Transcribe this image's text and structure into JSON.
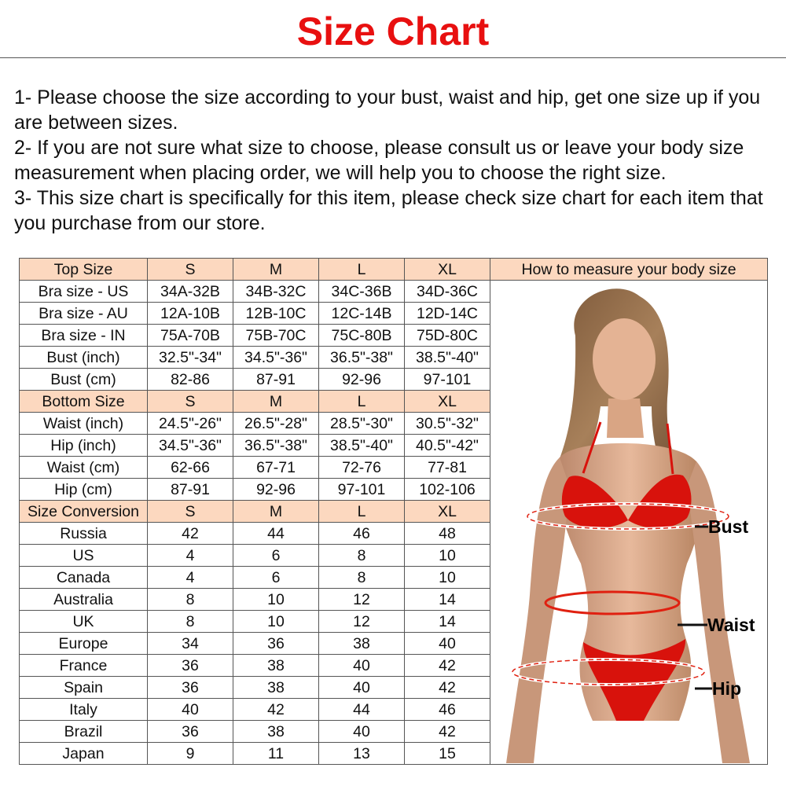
{
  "title": "Size Chart",
  "notes": [
    "1- Please choose the size according to your bust, waist and hip, get one size up if you are between sizes.",
    "2- If you are not sure what size to choose, please consult us or leave your body size measurement when placing order, we will help you to choose the right size.",
    "3- This size chart is specifically for this item, please check size chart for each item that you purchase from our store."
  ],
  "table": {
    "measure_header": "How to measure your body size",
    "rows": [
      {
        "header": true,
        "cells": [
          "Top Size",
          "S",
          "M",
          "L",
          "XL"
        ]
      },
      {
        "header": false,
        "cells": [
          "Bra size - US",
          "34A-32B",
          "34B-32C",
          "34C-36B",
          "34D-36C"
        ]
      },
      {
        "header": false,
        "cells": [
          "Bra size - AU",
          "12A-10B",
          "12B-10C",
          "12C-14B",
          "12D-14C"
        ]
      },
      {
        "header": false,
        "cells": [
          "Bra size - IN",
          "75A-70B",
          "75B-70C",
          "75C-80B",
          "75D-80C"
        ]
      },
      {
        "header": false,
        "cells": [
          "Bust (inch)",
          "32.5\"-34\"",
          "34.5\"-36\"",
          "36.5\"-38\"",
          "38.5\"-40\""
        ]
      },
      {
        "header": false,
        "cells": [
          "Bust (cm)",
          "82-86",
          "87-91",
          "92-96",
          "97-101"
        ]
      },
      {
        "header": true,
        "cells": [
          "Bottom Size",
          "S",
          "M",
          "L",
          "XL"
        ]
      },
      {
        "header": false,
        "cells": [
          "Waist (inch)",
          "24.5\"-26\"",
          "26.5\"-28\"",
          "28.5\"-30\"",
          "30.5\"-32\""
        ]
      },
      {
        "header": false,
        "cells": [
          "Hip (inch)",
          "34.5\"-36\"",
          "36.5\"-38\"",
          "38.5\"-40\"",
          "40.5\"-42\""
        ]
      },
      {
        "header": false,
        "cells": [
          "Waist (cm)",
          "62-66",
          "67-71",
          "72-76",
          "77-81"
        ]
      },
      {
        "header": false,
        "cells": [
          "Hip (cm)",
          "87-91",
          "92-96",
          "97-101",
          "102-106"
        ]
      },
      {
        "header": true,
        "cells": [
          "Size Conversion",
          "S",
          "M",
          "L",
          "XL"
        ]
      },
      {
        "header": false,
        "cells": [
          "Russia",
          "42",
          "44",
          "46",
          "48"
        ]
      },
      {
        "header": false,
        "cells": [
          "US",
          "4",
          "6",
          "8",
          "10"
        ]
      },
      {
        "header": false,
        "cells": [
          "Canada",
          "4",
          "6",
          "8",
          "10"
        ]
      },
      {
        "header": false,
        "cells": [
          "Australia",
          "8",
          "10",
          "12",
          "14"
        ]
      },
      {
        "header": false,
        "cells": [
          "UK",
          "8",
          "10",
          "12",
          "14"
        ]
      },
      {
        "header": false,
        "cells": [
          "Europe",
          "34",
          "36",
          "38",
          "40"
        ]
      },
      {
        "header": false,
        "cells": [
          "France",
          "36",
          "38",
          "40",
          "42"
        ]
      },
      {
        "header": false,
        "cells": [
          "Spain",
          "36",
          "38",
          "40",
          "42"
        ]
      },
      {
        "header": false,
        "cells": [
          "Italy",
          "40",
          "42",
          "44",
          "46"
        ]
      },
      {
        "header": false,
        "cells": [
          "Brazil",
          "36",
          "38",
          "40",
          "42"
        ]
      },
      {
        "header": false,
        "cells": [
          "Japan",
          "9",
          "11",
          "13",
          "15"
        ]
      }
    ]
  },
  "body_labels": {
    "bust": "Bust",
    "waist": "Waist",
    "hip": "Hip"
  },
  "colors": {
    "title": "#e81010",
    "header_fill": "#fcd8bf",
    "bikini": "#d8120c",
    "measure_arrow": "#e02010"
  },
  "icons": [
    "bust-arrow-icon",
    "waist-arrow-icon",
    "hip-arrow-icon"
  ]
}
